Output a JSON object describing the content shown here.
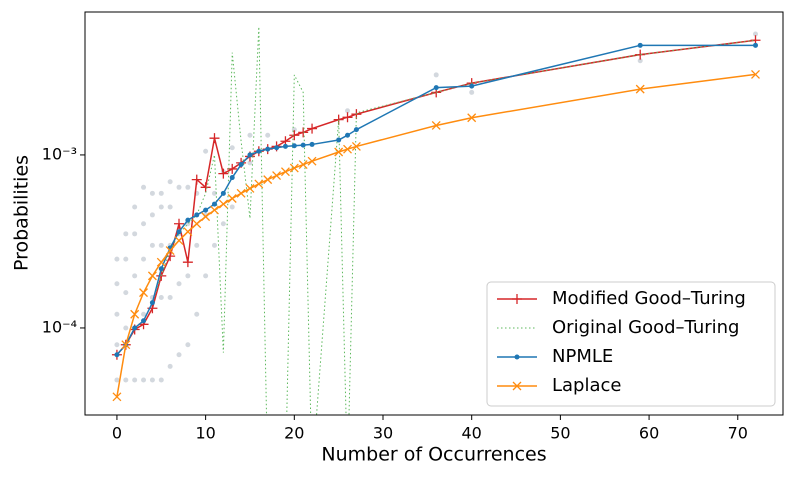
{
  "chart_data": {
    "type": "line",
    "xlabel": "Number of Occurrences",
    "ylabel": "Probabilities",
    "xlim": [
      -3.6,
      75.1
    ],
    "ylim": [
      3.14e-05,
      0.0067
    ],
    "xticks": [
      0,
      10,
      20,
      30,
      40,
      50,
      60,
      70
    ],
    "yticks": [
      {
        "value": 0.0001,
        "label": "10⁻⁴"
      },
      {
        "value": 0.001,
        "label": "10⁻³"
      }
    ],
    "log_y": true,
    "legend": "lower right",
    "x": [
      0,
      1,
      2,
      3,
      4,
      5,
      6,
      7,
      8,
      9,
      10,
      11,
      12,
      13,
      14,
      15,
      16,
      17,
      18,
      19,
      20,
      21,
      22,
      25,
      26,
      27,
      36,
      40,
      59,
      72
    ],
    "series": [
      {
        "name": "Modified Good–Turing",
        "color": "#d62728",
        "marker": "plus",
        "dash": "solid",
        "values": [
          7e-05,
          8e-05,
          9.8e-05,
          0.000105,
          0.00013,
          0.0002,
          0.00026,
          0.0004,
          0.00024,
          0.00072,
          0.00065,
          0.00125,
          0.00078,
          0.00083,
          0.0009,
          0.00098,
          0.00105,
          0.00108,
          0.00112,
          0.0012,
          0.0013,
          0.00135,
          0.00142,
          0.0016,
          0.00165,
          0.00172,
          0.0023,
          0.0026,
          0.0038,
          0.0046
        ]
      },
      {
        "name": "Original Good–Turing",
        "color": "#5cb85c",
        "marker": "none",
        "dash": "dotted",
        "values": [
          7e-05,
          8e-05,
          0.0001,
          0.00011,
          0.00014,
          0.0002,
          0.00028,
          0.00035,
          0.0004,
          0.00045,
          0.0006,
          0.001,
          7.2e-05,
          0.0039,
          0.0012,
          0.00043,
          0.0055,
          0,
          0,
          0,
          0.0029,
          0.0023,
          0,
          0.0016,
          0,
          0.00175,
          0.0023,
          0.0026,
          0.0038,
          0.0046
        ]
      },
      {
        "name": "NPMLE",
        "color": "#1f77b4",
        "marker": "dot",
        "dash": "solid",
        "values": [
          7e-05,
          8e-05,
          0.0001,
          0.00011,
          0.00014,
          0.00022,
          0.00029,
          0.00036,
          0.00042,
          0.00045,
          0.00048,
          0.00052,
          0.0006,
          0.00074,
          0.00088,
          0.001,
          0.00105,
          0.00108,
          0.0011,
          0.00112,
          0.00113,
          0.00114,
          0.00115,
          0.00122,
          0.0013,
          0.0014,
          0.00245,
          0.0025,
          0.0043,
          0.0043
        ]
      },
      {
        "name": "Laplace",
        "color": "#ff8c0f",
        "marker": "cross",
        "dash": "solid",
        "values": [
          4e-05,
          8e-05,
          0.00012,
          0.00016,
          0.0002,
          0.00024,
          0.00028,
          0.00032,
          0.00036,
          0.0004,
          0.00044,
          0.00048,
          0.00052,
          0.00056,
          0.0006,
          0.00064,
          0.00068,
          0.00072,
          0.00076,
          0.0008,
          0.00084,
          0.00088,
          0.00092,
          0.00104,
          0.00108,
          0.00112,
          0.00148,
          0.00164,
          0.0024,
          0.00292
        ]
      }
    ],
    "points": {
      "color": "#8090a0",
      "x": [
        0,
        0,
        0,
        0,
        0,
        1,
        1,
        1,
        1,
        1,
        2,
        2,
        2,
        2,
        2,
        3,
        3,
        3,
        3,
        3,
        4,
        4,
        4,
        4,
        4,
        5,
        5,
        5,
        5,
        5,
        6,
        6,
        6,
        6,
        6,
        7,
        7,
        7,
        7,
        8,
        8,
        8,
        8,
        9,
        9,
        9,
        10,
        10,
        10,
        11,
        11,
        12,
        12,
        13,
        13,
        15,
        15,
        17,
        20,
        26,
        36,
        40,
        59,
        72
      ],
      "y": [
        5e-05,
        8e-05,
        0.00012,
        0.00018,
        0.00025,
        5e-05,
        0.0001,
        0.00016,
        0.00025,
        0.00035,
        5e-05,
        0.0001,
        0.0002,
        0.00035,
        0.0005,
        5e-05,
        0.00012,
        0.00025,
        0.0004,
        0.00065,
        5e-05,
        0.00015,
        0.0003,
        0.00045,
        0.0006,
        5e-05,
        0.00015,
        0.0003,
        0.0005,
        0.0006,
        6e-05,
        0.00015,
        0.0003,
        0.0005,
        0.0007,
        7e-05,
        0.00018,
        0.00035,
        0.00065,
        8e-05,
        0.0002,
        0.0004,
        0.00065,
        0.00012,
        0.0003,
        0.0006,
        0.0002,
        0.00045,
        0.00105,
        0.0003,
        0.0006,
        0.0004,
        0.0008,
        0.0005,
        0.0011,
        0.0009,
        0.0013,
        0.0013,
        0.0014,
        0.0018,
        0.0029,
        0.0023,
        0.0035,
        0.005
      ]
    }
  }
}
